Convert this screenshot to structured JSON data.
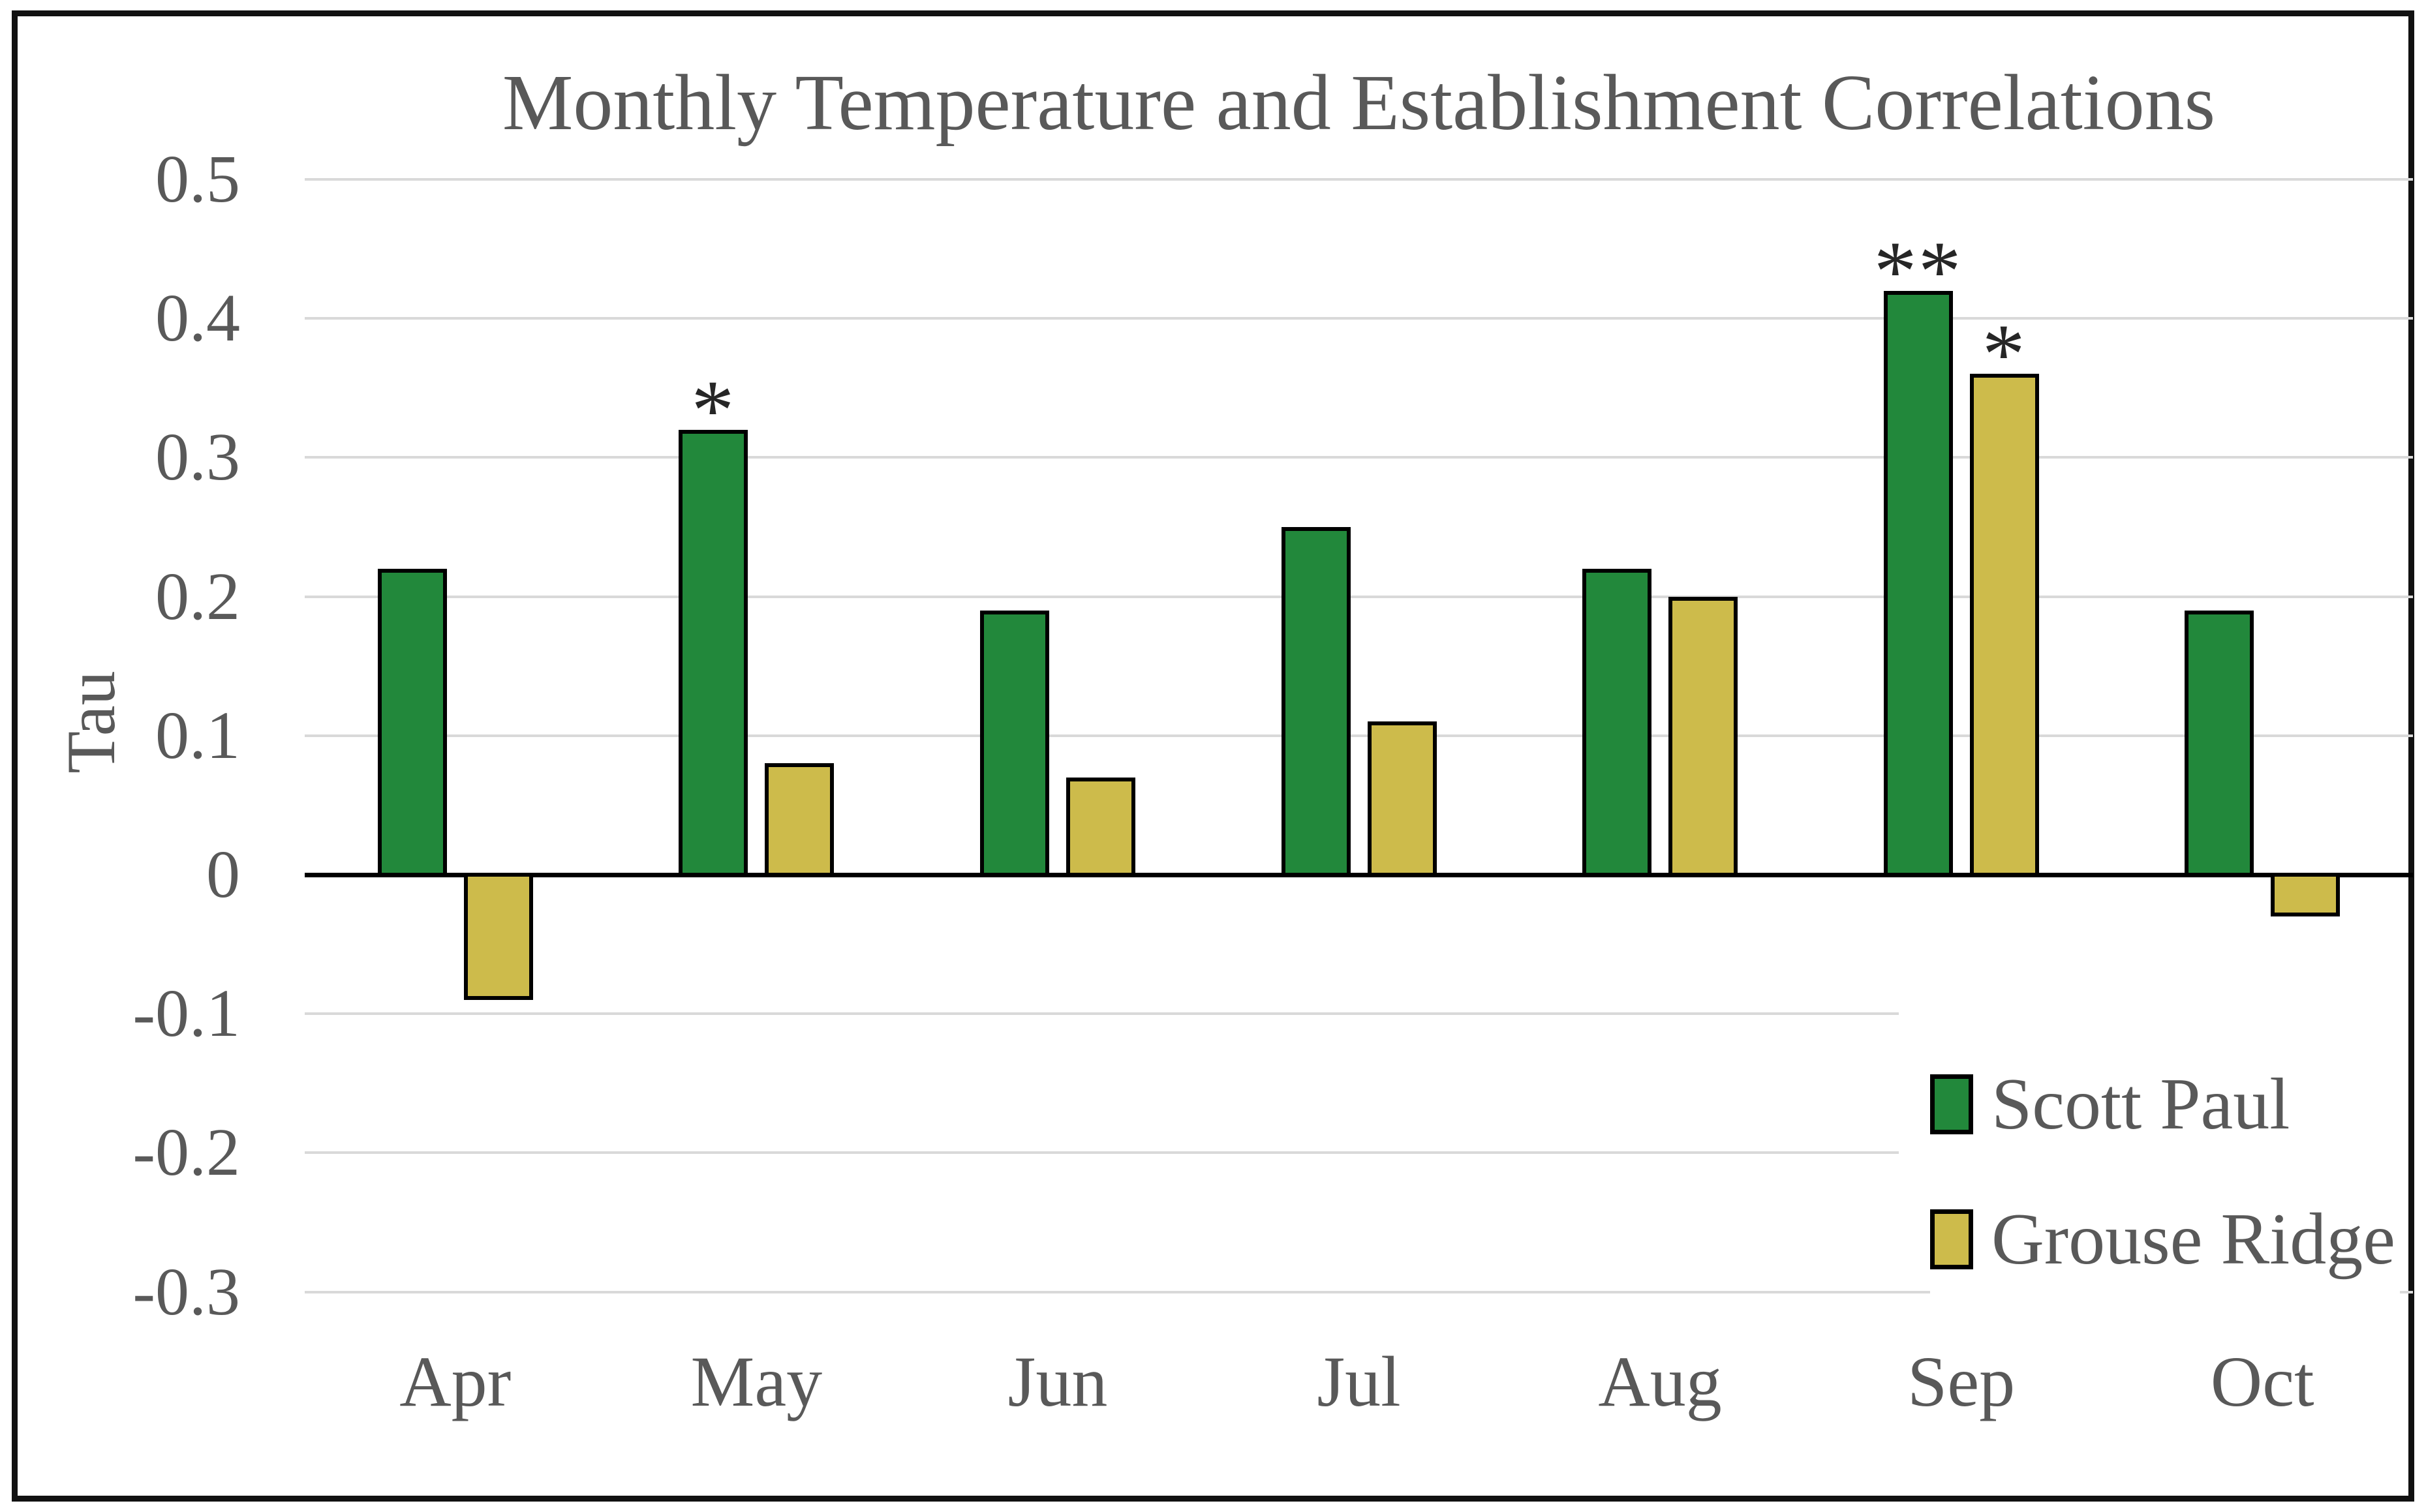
{
  "chart_data": {
    "type": "bar",
    "title": "Monthly Temperature and Establishment Correlations",
    "ylabel": "Tau",
    "xlabel": "",
    "categories": [
      "Apr",
      "May",
      "Jun",
      "Jul",
      "Aug",
      "Sep",
      "Oct"
    ],
    "series": [
      {
        "name": "Scott Paul",
        "color": "#22883B",
        "values": [
          0.22,
          0.32,
          0.19,
          0.25,
          0.22,
          0.42,
          0.19
        ],
        "significance": [
          "",
          "*",
          "",
          "",
          "",
          "**",
          ""
        ]
      },
      {
        "name": "Grouse Ridge",
        "color": "#CDBB4B",
        "values": [
          -0.09,
          0.08,
          0.07,
          0.11,
          0.2,
          0.36,
          -0.03
        ],
        "significance": [
          "",
          "",
          "",
          "",
          "",
          "*",
          ""
        ]
      }
    ],
    "ylim": [
      -0.3,
      0.5
    ],
    "y_ticks": [
      0.5,
      0.4,
      0.3,
      0.2,
      0.1,
      0,
      -0.1,
      -0.2,
      -0.3
    ],
    "y_tick_labels": [
      "0.5",
      "0.4",
      "0.3",
      "0.2",
      "0.1",
      "0",
      "-0.1",
      "-0.2",
      "-0.3"
    ],
    "grid": true,
    "gridline_color": "#D9D9D9",
    "text_color": "#595959",
    "bar_border_color": "#000000",
    "zero_line_color": "#000000",
    "legend_position": "right-lower",
    "legend_labels": [
      "Scott Paul",
      "Grouse Ridge"
    ]
  }
}
